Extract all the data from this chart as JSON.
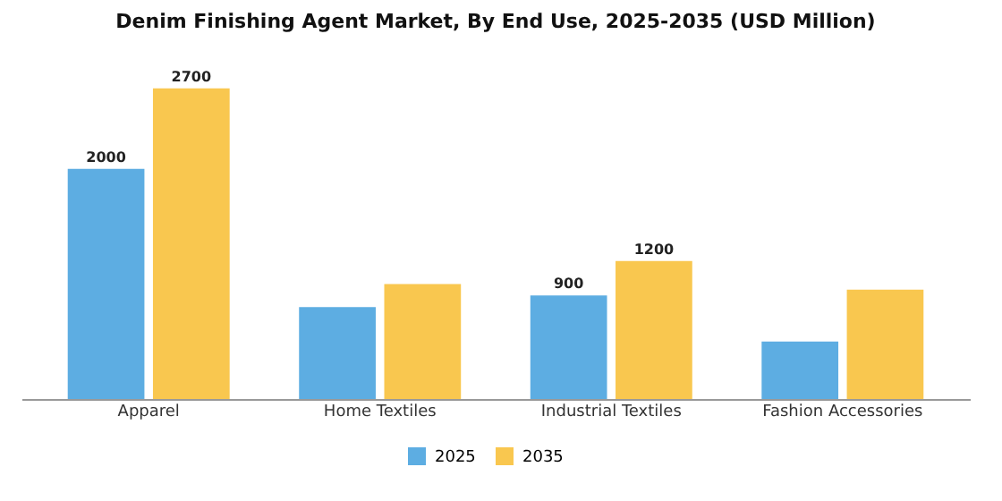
{
  "chart_data": {
    "type": "bar",
    "title": "Denim Finishing Agent Market, By End Use, 2025-2035 (USD Million)",
    "categories": [
      "Apparel",
      "Home Textiles",
      "Industrial Textiles",
      "Fashion Accessories"
    ],
    "series": [
      {
        "name": "2025",
        "color": "#5dade2",
        "values": [
          2000,
          800,
          900,
          500
        ],
        "value_labels": [
          "2000",
          null,
          "900",
          null
        ]
      },
      {
        "name": "2035",
        "color": "#f9c74f",
        "values": [
          2700,
          1000,
          1200,
          950
        ],
        "value_labels": [
          "2700",
          null,
          "1200",
          null
        ]
      }
    ],
    "legend": "bottom",
    "tick_labels": "x"
  }
}
